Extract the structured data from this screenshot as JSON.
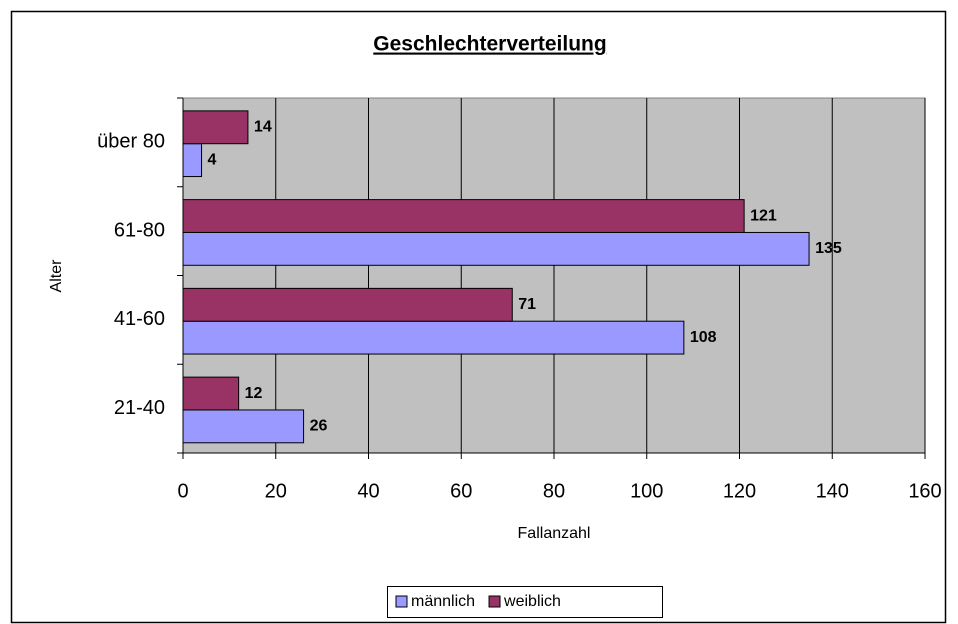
{
  "chart_data": {
    "type": "bar",
    "orientation": "horizontal",
    "title": "Geschlechterverteilung",
    "x_label": "Fallanzahl",
    "y_label": "Alter",
    "categories": [
      "21-40",
      "41-60",
      "61-80",
      "über 80"
    ],
    "series": [
      {
        "name": "männlich",
        "color": "#9999ff",
        "values": [
          26,
          108,
          135,
          4
        ]
      },
      {
        "name": "weiblich",
        "color": "#993366",
        "values": [
          12,
          71,
          121,
          14
        ]
      }
    ],
    "xlim": [
      0,
      160
    ],
    "xticks": [
      0,
      20,
      40,
      60,
      80,
      100,
      120,
      140,
      160
    ],
    "grid": true,
    "legend": "bottom",
    "plot_background": "#c0c0c0"
  }
}
